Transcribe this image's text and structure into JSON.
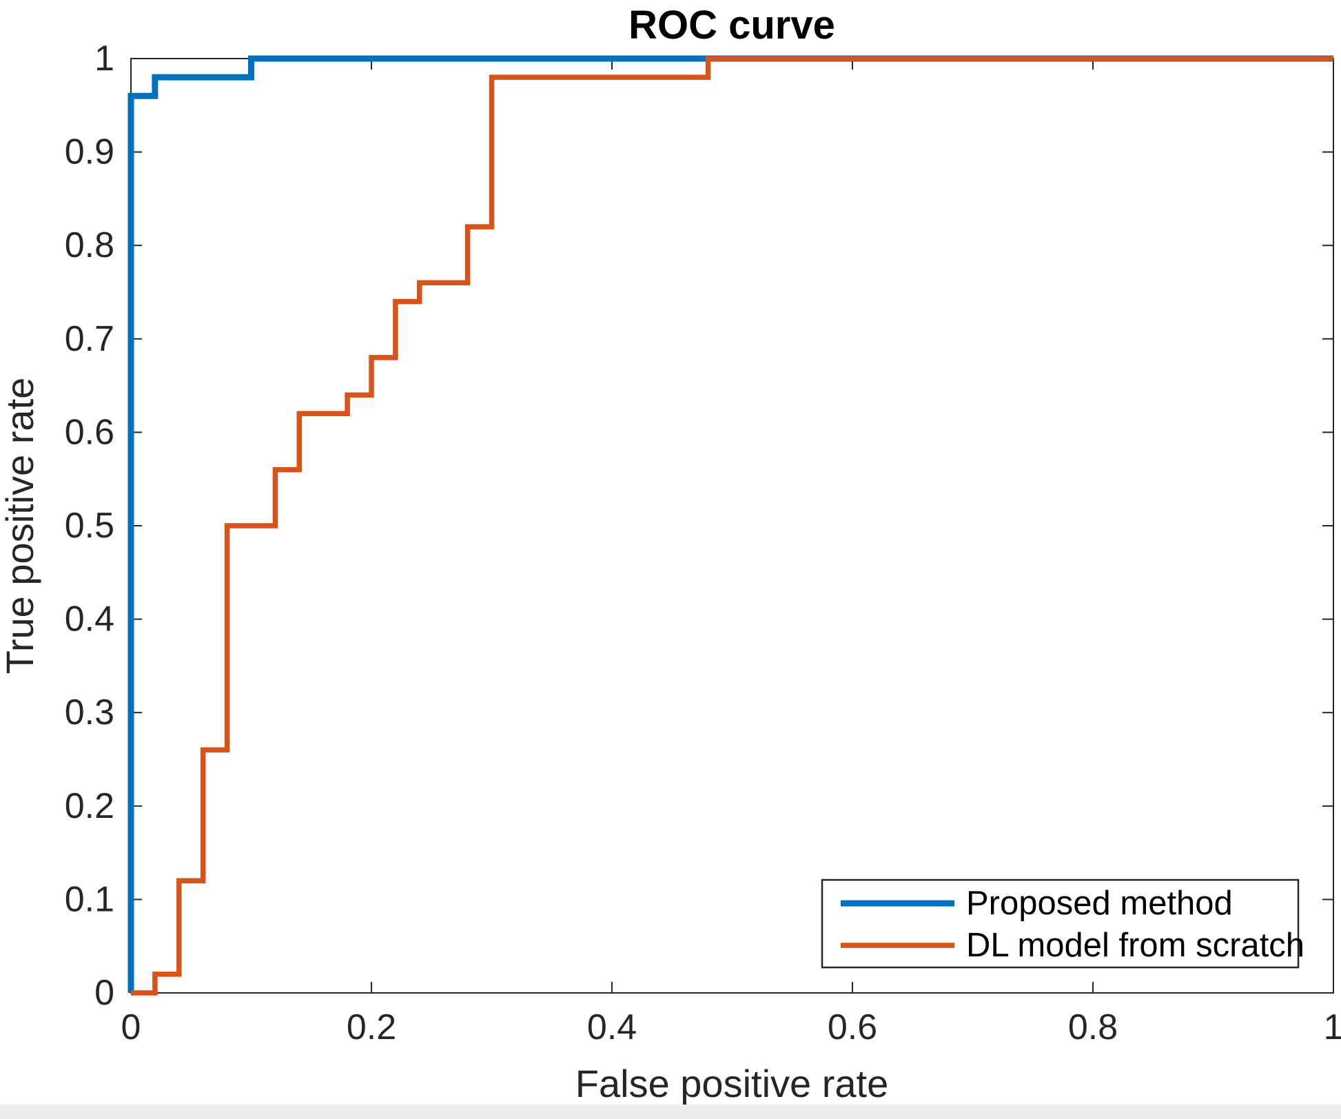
{
  "figure": {
    "title": "ROC curve",
    "x_axis": {
      "label": "False positive rate",
      "range": [
        0,
        1
      ],
      "ticks": [
        {
          "value": 0,
          "label": "0"
        },
        {
          "value": 0.2,
          "label": "0.2"
        },
        {
          "value": 0.4,
          "label": "0.4"
        },
        {
          "value": 0.6,
          "label": "0.6"
        },
        {
          "value": 0.8,
          "label": "0.8"
        },
        {
          "value": 1,
          "label": "1"
        }
      ]
    },
    "y_axis": {
      "label": "True positive rate",
      "range": [
        0,
        1
      ],
      "ticks": [
        {
          "value": 0,
          "label": "0"
        },
        {
          "value": 0.1,
          "label": "0.1"
        },
        {
          "value": 0.2,
          "label": "0.2"
        },
        {
          "value": 0.3,
          "label": "0.3"
        },
        {
          "value": 0.4,
          "label": "0.4"
        },
        {
          "value": 0.5,
          "label": "0.5"
        },
        {
          "value": 0.6,
          "label": "0.6"
        },
        {
          "value": 0.7,
          "label": "0.7"
        },
        {
          "value": 0.8,
          "label": "0.8"
        },
        {
          "value": 0.9,
          "label": "0.9"
        },
        {
          "value": 1,
          "label": "1"
        }
      ]
    },
    "legend": {
      "position": "southeast",
      "items": [
        {
          "label": "Proposed method",
          "color": "#0072BD"
        },
        {
          "label": "DL model from scratch",
          "color": "#D95319"
        }
      ]
    },
    "frame_color": "#262626",
    "bottom_strip_color": "#ececec"
  },
  "chart_data": {
    "type": "line",
    "subtype": "roc-step-curves",
    "title": "ROC curve",
    "xlabel": "False positive rate",
    "ylabel": "True positive rate",
    "xlim": [
      0,
      1
    ],
    "ylim": [
      0,
      1
    ],
    "grid": false,
    "legend_position": "southeast",
    "series": [
      {
        "name": "Proposed method",
        "color": "#0072BD",
        "line_width": 9,
        "points": [
          [
            0,
            0
          ],
          [
            0,
            0.96
          ],
          [
            0.02,
            0.96
          ],
          [
            0.02,
            0.98
          ],
          [
            0.1,
            0.98
          ],
          [
            0.1,
            1.0
          ],
          [
            1.0,
            1.0
          ]
        ]
      },
      {
        "name": "DL model from scratch",
        "color": "#D95319",
        "line_width": 7.5,
        "points": [
          [
            0,
            0
          ],
          [
            0.02,
            0
          ],
          [
            0.02,
            0.02
          ],
          [
            0.04,
            0.02
          ],
          [
            0.04,
            0.12
          ],
          [
            0.06,
            0.12
          ],
          [
            0.06,
            0.26
          ],
          [
            0.08,
            0.26
          ],
          [
            0.08,
            0.5
          ],
          [
            0.12,
            0.5
          ],
          [
            0.12,
            0.56
          ],
          [
            0.14,
            0.56
          ],
          [
            0.14,
            0.62
          ],
          [
            0.18,
            0.62
          ],
          [
            0.18,
            0.64
          ],
          [
            0.2,
            0.64
          ],
          [
            0.2,
            0.68
          ],
          [
            0.22,
            0.68
          ],
          [
            0.22,
            0.74
          ],
          [
            0.24,
            0.74
          ],
          [
            0.24,
            0.76
          ],
          [
            0.28,
            0.76
          ],
          [
            0.28,
            0.82
          ],
          [
            0.3,
            0.82
          ],
          [
            0.3,
            0.98
          ],
          [
            0.48,
            0.98
          ],
          [
            0.48,
            1.0
          ],
          [
            1.0,
            1.0
          ]
        ]
      }
    ]
  }
}
